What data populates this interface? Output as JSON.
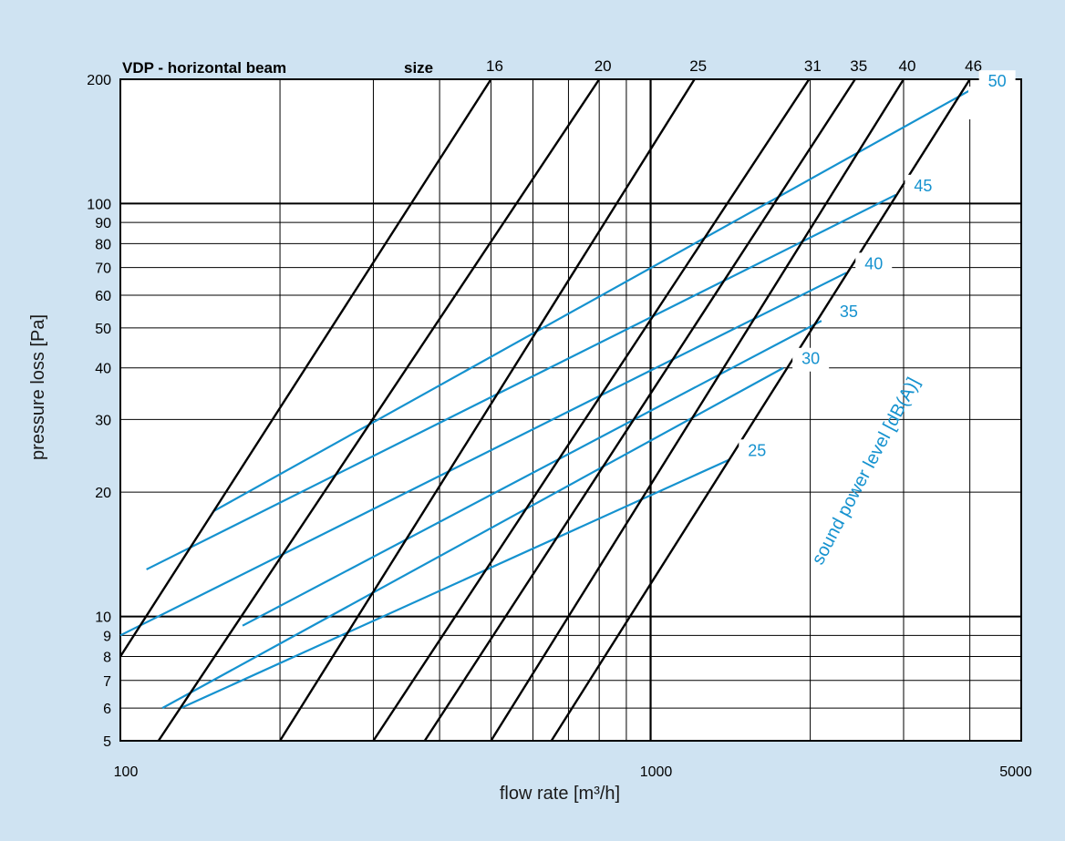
{
  "chart_data": {
    "type": "line",
    "title": "VDP - horizontal beam",
    "size_header": "size",
    "xlabel": "flow rate [m³/h]",
    "ylabel": "pressure loss [Pa]",
    "sound_axis_label": "sound power level [dB(A)]",
    "xscale": "log",
    "yscale": "log",
    "xlim": [
      100,
      5000
    ],
    "ylim": [
      5,
      200
    ],
    "grid": true,
    "colors": {
      "size_line": "#000000",
      "sound_line": "#1592cf",
      "background": "#cfe3f2",
      "plot_area": "#ffffff"
    },
    "x_tick_labels": [
      "100",
      "1000",
      "5000"
    ],
    "y_tick_labels": [
      "200",
      "100",
      "90",
      "80",
      "70",
      "60",
      "50",
      "40",
      "30",
      "20",
      "10",
      "9",
      "8",
      "7",
      "6",
      "5"
    ],
    "x_grid_values": [
      200,
      300,
      400,
      500,
      600,
      700,
      800,
      900,
      1000,
      2000,
      3000,
      4000
    ],
    "y_grid_values": [
      6,
      7,
      8,
      9,
      10,
      20,
      30,
      40,
      50,
      60,
      70,
      80,
      90,
      100
    ],
    "size_series": [
      {
        "name": "16",
        "x": [
          100,
          500
        ],
        "y": [
          8,
          200
        ]
      },
      {
        "name": "20",
        "x": [
          118,
          800
        ],
        "y": [
          5,
          200
        ]
      },
      {
        "name": "25",
        "x": [
          200,
          1210
        ],
        "y": [
          5,
          200
        ]
      },
      {
        "name": "31",
        "x": [
          300,
          1990
        ],
        "y": [
          5,
          200
        ]
      },
      {
        "name": "35",
        "x": [
          375,
          2430
        ],
        "y": [
          5,
          200
        ]
      },
      {
        "name": "40",
        "x": [
          500,
          3000
        ],
        "y": [
          5,
          200
        ]
      },
      {
        "name": "46",
        "x": [
          650,
          4000
        ],
        "y": [
          5,
          200
        ]
      }
    ],
    "sound_series": [
      {
        "name": "50",
        "x": [
          150,
          4000
        ],
        "y": [
          18,
          188
        ]
      },
      {
        "name": "45",
        "x": [
          112,
          2900
        ],
        "y": [
          13,
          105
        ]
      },
      {
        "name": "40",
        "x": [
          100,
          2340
        ],
        "y": [
          9,
          68
        ]
      },
      {
        "name": "35",
        "x": [
          170,
          2100
        ],
        "y": [
          9.5,
          52
        ]
      },
      {
        "name": "30",
        "x": [
          120,
          1780
        ],
        "y": [
          6,
          40
        ]
      },
      {
        "name": "25",
        "x": [
          1410
        ],
        "y": [
          24
        ]
      }
    ]
  }
}
